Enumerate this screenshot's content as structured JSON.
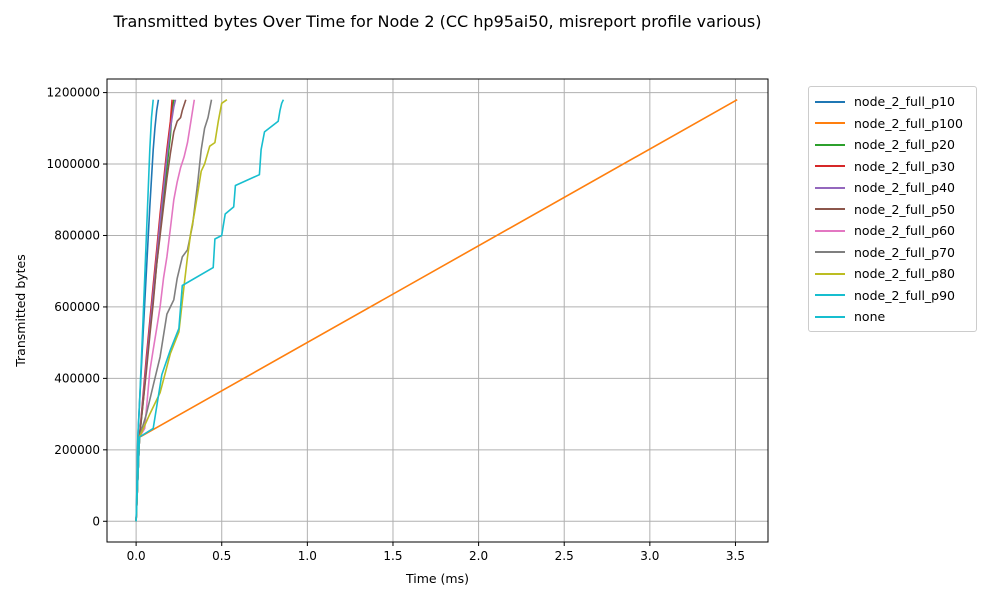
{
  "chart_data": {
    "type": "line",
    "title": "Transmitted bytes Over Time for Node 2 (CC hp95ai50, misreport profile various)",
    "xlabel": "Time (ms)",
    "ylabel": "Transmitted bytes",
    "xlim": [
      -0.17,
      3.69
    ],
    "ylim": [
      -58000,
      1238000
    ],
    "xticks": [
      0.0,
      0.5,
      1.0,
      1.5,
      2.0,
      2.5,
      3.0,
      3.5
    ],
    "xtick_labels": [
      "0.0",
      "0.5",
      "1.0",
      "1.5",
      "2.0",
      "2.5",
      "3.0",
      "3.5"
    ],
    "yticks": [
      0,
      200000,
      400000,
      600000,
      800000,
      1000000,
      1200000
    ],
    "ytick_labels": [
      "0",
      "200000",
      "400000",
      "600000",
      "800000",
      "1000000",
      "1200000"
    ],
    "grid": true,
    "legend_position": "outside-right-top",
    "series": [
      {
        "name": "node_2_full_p10",
        "color": "#1f77b4",
        "x": [
          0.0,
          0.005,
          0.01,
          0.02,
          0.03,
          0.04,
          0.05,
          0.06,
          0.07,
          0.08,
          0.09,
          0.1,
          0.11,
          0.12,
          0.13
        ],
        "y": [
          0,
          100000,
          230000,
          330000,
          420000,
          520000,
          610000,
          700000,
          790000,
          880000,
          960000,
          1040000,
          1100000,
          1150000,
          1180000
        ]
      },
      {
        "name": "node_2_full_p100",
        "color": "#ff7f0e",
        "x": [
          0.0,
          0.01,
          0.02,
          0.03,
          3.51
        ],
        "y": [
          0,
          120000,
          236000,
          238000,
          1180000
        ]
      },
      {
        "name": "node_2_full_p20",
        "color": "#2ca02c",
        "x": [
          0.0,
          0.01,
          0.02,
          0.04,
          0.06,
          0.08,
          0.1,
          0.12,
          0.14,
          0.16,
          0.18,
          0.2,
          0.21,
          0.22
        ],
        "y": [
          0,
          120000,
          236000,
          330000,
          430000,
          530000,
          620000,
          720000,
          810000,
          900000,
          990000,
          1080000,
          1150000,
          1180000
        ]
      },
      {
        "name": "node_2_full_p30",
        "color": "#d62728",
        "x": [
          0.0,
          0.01,
          0.02,
          0.04,
          0.06,
          0.08,
          0.1,
          0.12,
          0.14,
          0.16,
          0.18,
          0.2,
          0.21
        ],
        "y": [
          0,
          120000,
          236000,
          350000,
          460000,
          560000,
          660000,
          760000,
          860000,
          950000,
          1040000,
          1120000,
          1180000
        ]
      },
      {
        "name": "node_2_full_p40",
        "color": "#9467bd",
        "x": [
          0.0,
          0.01,
          0.02,
          0.04,
          0.06,
          0.08,
          0.1,
          0.12,
          0.14,
          0.16,
          0.18,
          0.2,
          0.22,
          0.23
        ],
        "y": [
          0,
          120000,
          236000,
          340000,
          440000,
          540000,
          640000,
          740000,
          840000,
          930000,
          1020000,
          1100000,
          1160000,
          1180000
        ]
      },
      {
        "name": "node_2_full_p50",
        "color": "#8c564b",
        "x": [
          0.0,
          0.01,
          0.02,
          0.04,
          0.06,
          0.08,
          0.1,
          0.12,
          0.14,
          0.16,
          0.18,
          0.2,
          0.22,
          0.24,
          0.26,
          0.27,
          0.29
        ],
        "y": [
          0,
          120000,
          236000,
          330000,
          420000,
          520000,
          610000,
          720000,
          800000,
          880000,
          960000,
          1030000,
          1090000,
          1120000,
          1130000,
          1150000,
          1180000
        ]
      },
      {
        "name": "node_2_full_p60",
        "color": "#e377c2",
        "x": [
          0.0,
          0.01,
          0.02,
          0.05,
          0.08,
          0.1,
          0.12,
          0.14,
          0.16,
          0.18,
          0.2,
          0.22,
          0.24,
          0.26,
          0.28,
          0.3,
          0.32,
          0.34
        ],
        "y": [
          0,
          120000,
          236000,
          260000,
          420000,
          480000,
          540000,
          600000,
          680000,
          740000,
          820000,
          900000,
          950000,
          990000,
          1020000,
          1060000,
          1120000,
          1180000
        ]
      },
      {
        "name": "node_2_full_p70",
        "color": "#7f7f7f",
        "x": [
          0.0,
          0.01,
          0.02,
          0.06,
          0.1,
          0.14,
          0.18,
          0.2,
          0.22,
          0.24,
          0.27,
          0.3,
          0.33,
          0.36,
          0.38,
          0.4,
          0.42,
          0.44
        ],
        "y": [
          0,
          120000,
          236000,
          300000,
          380000,
          460000,
          580000,
          600000,
          620000,
          680000,
          740000,
          760000,
          830000,
          950000,
          1040000,
          1100000,
          1130000,
          1180000
        ]
      },
      {
        "name": "node_2_full_p80",
        "color": "#bcbd22",
        "x": [
          0.0,
          0.01,
          0.02,
          0.08,
          0.14,
          0.2,
          0.25,
          0.28,
          0.3,
          0.32,
          0.34,
          0.36,
          0.38,
          0.4,
          0.43,
          0.46,
          0.48,
          0.5,
          0.53
        ],
        "y": [
          0,
          120000,
          236000,
          300000,
          360000,
          470000,
          530000,
          660000,
          740000,
          810000,
          860000,
          920000,
          980000,
          1000000,
          1050000,
          1060000,
          1120000,
          1170000,
          1180000
        ]
      },
      {
        "name": "node_2_full_p90",
        "color": "#17becf",
        "x": [
          0.0,
          0.01,
          0.02,
          0.1,
          0.15,
          0.2,
          0.25,
          0.27,
          0.45,
          0.46,
          0.5,
          0.52,
          0.57,
          0.58,
          0.72,
          0.73,
          0.75,
          0.83,
          0.84,
          0.85,
          0.86
        ],
        "y": [
          0,
          120000,
          236000,
          260000,
          410000,
          480000,
          540000,
          660000,
          710000,
          790000,
          800000,
          860000,
          880000,
          940000,
          970000,
          1040000,
          1090000,
          1120000,
          1150000,
          1170000,
          1180000
        ]
      },
      {
        "name": "none",
        "color": "#17becf",
        "x": [
          0.0,
          0.005,
          0.01,
          0.02,
          0.03,
          0.04,
          0.05,
          0.06,
          0.07,
          0.08,
          0.09,
          0.1
        ],
        "y": [
          0,
          100000,
          236000,
          330000,
          440000,
          560000,
          680000,
          800000,
          920000,
          1040000,
          1130000,
          1180000
        ]
      }
    ]
  }
}
